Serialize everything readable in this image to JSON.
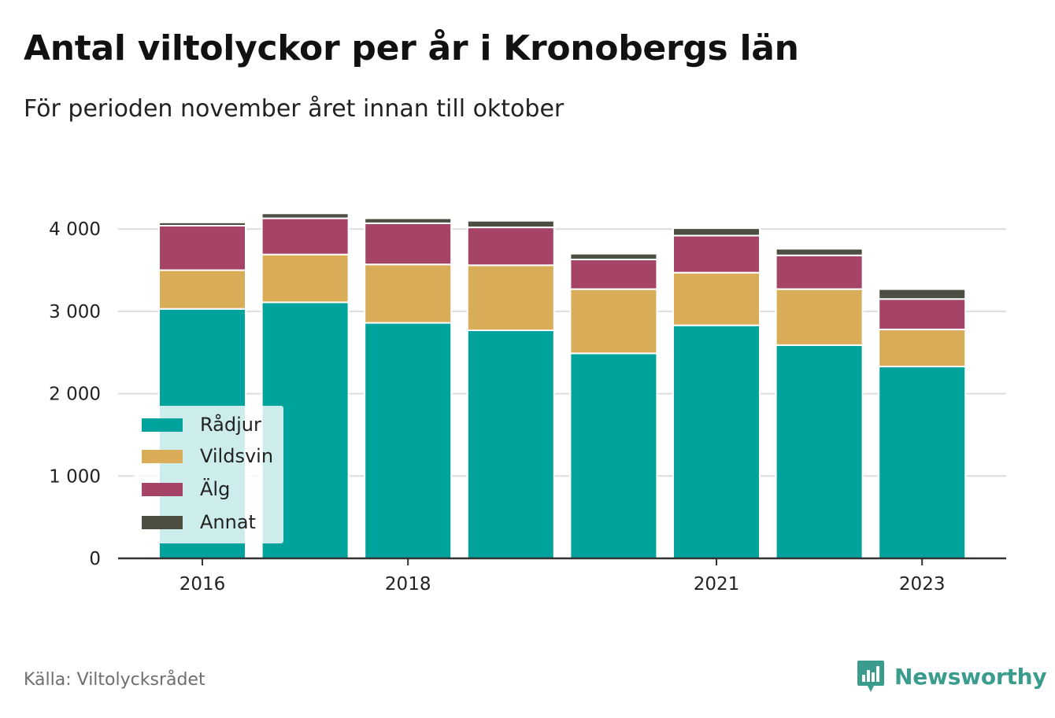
{
  "title": "Antal viltolyckor per år i Kronobergs län",
  "subtitle": "För perioden november året innan till oktober",
  "source": "Källa: Viltolycksrådet",
  "brand": {
    "name": "Newsworthy",
    "color": "#3a9c8d",
    "logo_icon": "chart-speech-bubble-icon"
  },
  "chart_data": {
    "type": "bar",
    "stacked": true,
    "x": [
      2016,
      2017,
      2018,
      2019,
      2020,
      2021,
      2022,
      2023
    ],
    "x_tick_labels": [
      "2016",
      "",
      "2018",
      "",
      "",
      "2021",
      "",
      "2023"
    ],
    "series": [
      {
        "name": "Rådjur",
        "color": "#00a39b",
        "values": [
          3030,
          3110,
          2860,
          2770,
          2490,
          2830,
          2590,
          2330
        ]
      },
      {
        "name": "Vildsvin",
        "color": "#d9ac58",
        "values": [
          470,
          580,
          710,
          790,
          780,
          640,
          680,
          450
        ]
      },
      {
        "name": "Älg",
        "color": "#a64468",
        "values": [
          540,
          440,
          500,
          460,
          360,
          450,
          410,
          370
        ]
      },
      {
        "name": "Annat",
        "color": "#4b4e41",
        "values": [
          40,
          60,
          60,
          80,
          70,
          90,
          80,
          120
        ]
      }
    ],
    "y_ticks": [
      0,
      1000,
      2000,
      3000,
      4000
    ],
    "y_tick_labels": [
      "0",
      "1 000",
      "2 000",
      "3 000",
      "4 000"
    ],
    "ylim": [
      0,
      4400
    ],
    "grid": true,
    "legend_position": "bottom-left",
    "xlabel": "",
    "ylabel": ""
  }
}
